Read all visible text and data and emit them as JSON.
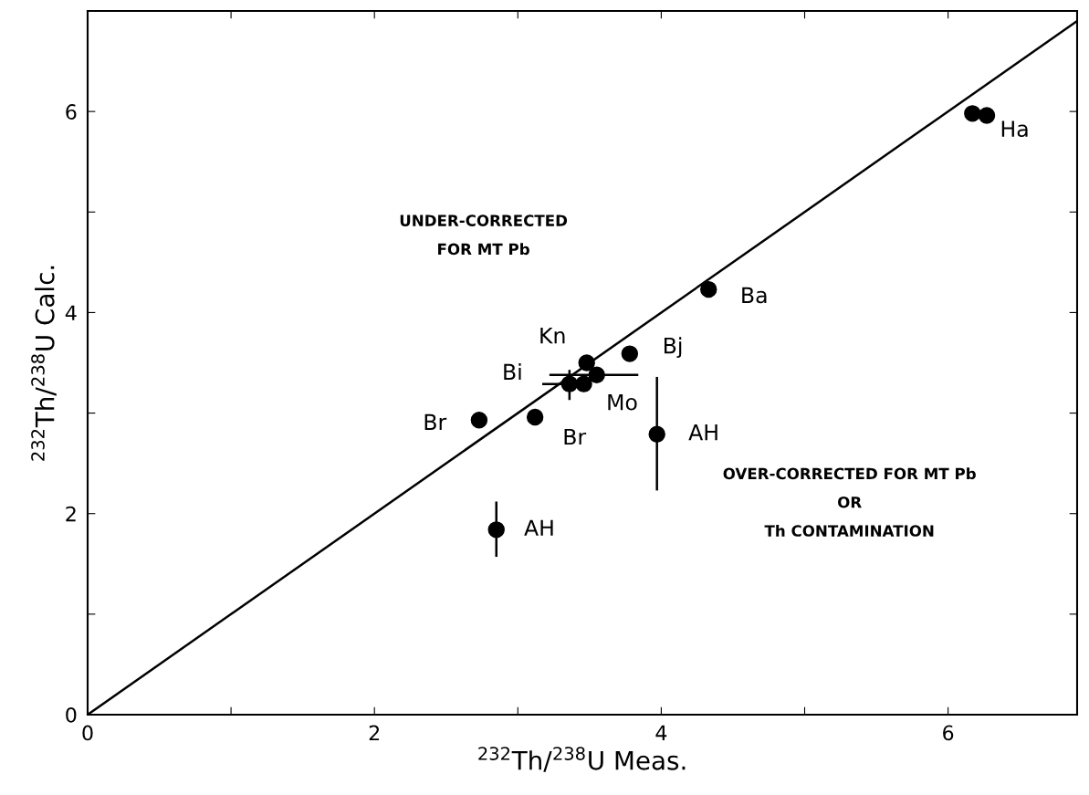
{
  "chart_data": {
    "type": "scatter",
    "xlabel": "$^{232}$Th/$^{238}$U Meas.",
    "ylabel": "$^{232}$Th/$^{238}$U Calc.",
    "xlim": [
      0,
      6.9
    ],
    "ylim": [
      0,
      7
    ],
    "xticks": [
      0,
      {
        "value": 1,
        "label": null
      },
      2,
      {
        "value": 3,
        "label": null
      },
      4,
      {
        "value": 5,
        "label": null
      },
      6
    ],
    "yticks": [
      0,
      {
        "value": 1,
        "label": null
      },
      2,
      {
        "value": 3,
        "label": null
      },
      4,
      {
        "value": 5,
        "label": null
      },
      6
    ],
    "grid": false,
    "legend": false,
    "marker": "circle",
    "series": [
      {
        "color": "#000000",
        "x": [
          6.17,
          6.27,
          4.33,
          3.78,
          3.48,
          3.55,
          3.46,
          3.36,
          2.73,
          3.12,
          3.97,
          2.85
        ],
        "values": [
          5.98,
          5.96,
          4.23,
          3.59,
          3.5,
          3.38,
          3.29,
          3.29,
          2.93,
          2.96,
          2.79,
          1.84
        ],
        "errors": [
          null,
          null,
          null,
          null,
          null,
          null,
          null,
          [
            3.13,
            3.43
          ],
          null,
          null,
          [
            2.23,
            3.36
          ],
          [
            1.57,
            2.12
          ]
        ],
        "xerrors": [
          null,
          null,
          null,
          null,
          null,
          [
            3.22,
            3.84
          ],
          null,
          [
            3.17,
            3.5
          ],
          null,
          null,
          null,
          null
        ]
      },
      {
        "type": "line",
        "color": "#000000",
        "line_style": "solid",
        "marker": "none",
        "x": [
          0,
          6.9
        ],
        "values": [
          0,
          6.9
        ]
      }
    ],
    "annotations": [
      {
        "text": "Ha",
        "x": 6.27,
        "y": 5.96
      },
      {
        "text": "Ba",
        "x": 4.33,
        "y": 4.23
      },
      {
        "text": "Bj",
        "x": 3.78,
        "y": 3.59
      },
      {
        "text": "Kn",
        "x": 3.48,
        "y": 3.5
      },
      {
        "text": "Bi",
        "x": 3.36,
        "y": 3.29
      },
      {
        "text": "Mo",
        "x": 3.55,
        "y": 3.38
      },
      {
        "text": "Br",
        "x": 2.73,
        "y": 2.93
      },
      {
        "text": "Br",
        "x": 3.12,
        "y": 2.96
      },
      {
        "text": "AH",
        "x": 3.97,
        "y": 2.79
      },
      {
        "text": "AH",
        "x": 2.85,
        "y": 1.84
      },
      "UNDER-CORRECTED\nFOR MT Pb",
      "OVER-CORRECTED FOR MT Pb\nOR\nTh CONTAMINATION"
    ]
  }
}
